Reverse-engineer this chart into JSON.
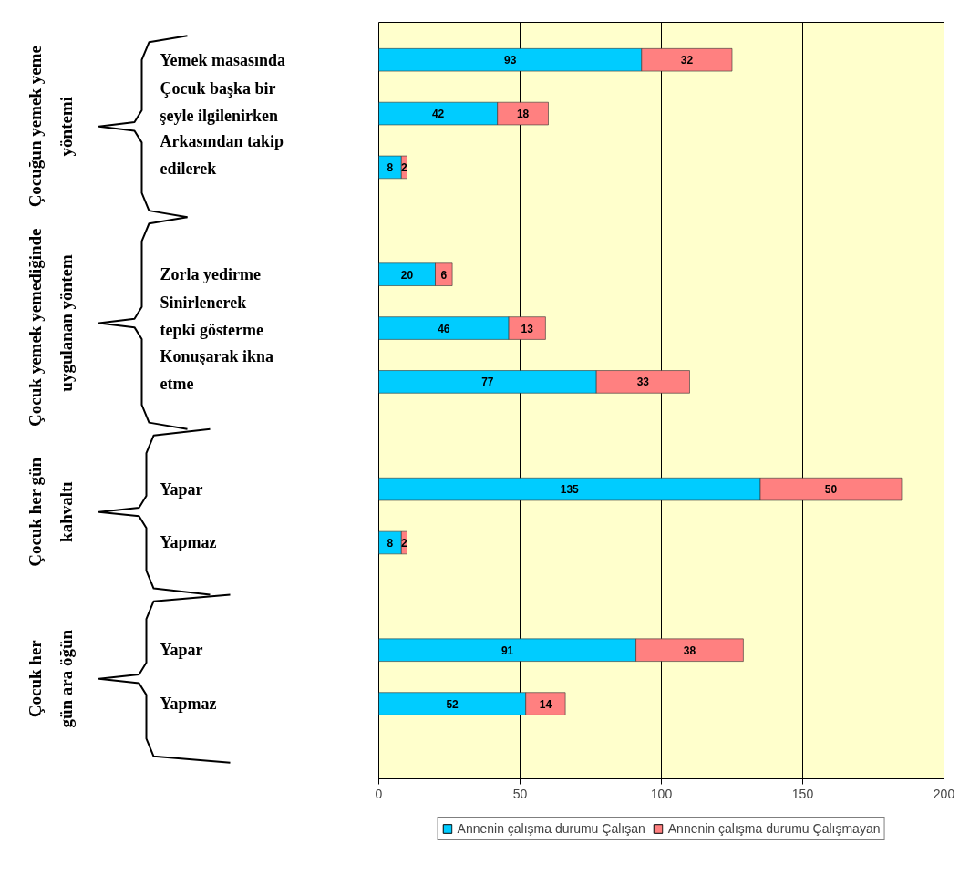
{
  "chart_data": {
    "type": "bar",
    "orientation": "horizontal",
    "stacked": true,
    "categories": [
      "Yemek masasında",
      "Çocuk başka bir\nşeyle ilgilenirken",
      "Arkasından takip\nedilerek",
      null,
      "Zorla yedirme",
      "Sinirlenerek\ntepki gösterme",
      "Konuşarak ikna\netme",
      null,
      "Yapar",
      "Yapmaz",
      null,
      "Yapar",
      "Yapmaz",
      null
    ],
    "series": [
      {
        "name": "Annenin çalışma durumu Çalışan",
        "color": "#00ccff",
        "values": [
          93,
          42,
          8,
          null,
          20,
          46,
          77,
          null,
          135,
          8,
          null,
          91,
          52,
          null
        ]
      },
      {
        "name": "Annenin çalışma durumu Çalışmayan",
        "color": "#ff8080",
        "values": [
          32,
          18,
          2,
          null,
          6,
          13,
          33,
          null,
          50,
          2,
          null,
          38,
          14,
          null
        ]
      }
    ],
    "xlim": [
      0,
      200
    ],
    "xticks": [
      0,
      50,
      100,
      150,
      200
    ],
    "grid": "x",
    "legend": "bottom",
    "data_labels": true,
    "annotations": [
      "Çocuğun yemek yeme\nyöntemi",
      "Çocuk  yemek  yemediğinde\nuygulanan yöntem",
      "Çocuk her gün\nkahvaltı",
      "Çocuk her\ngün ara öğün"
    ]
  }
}
